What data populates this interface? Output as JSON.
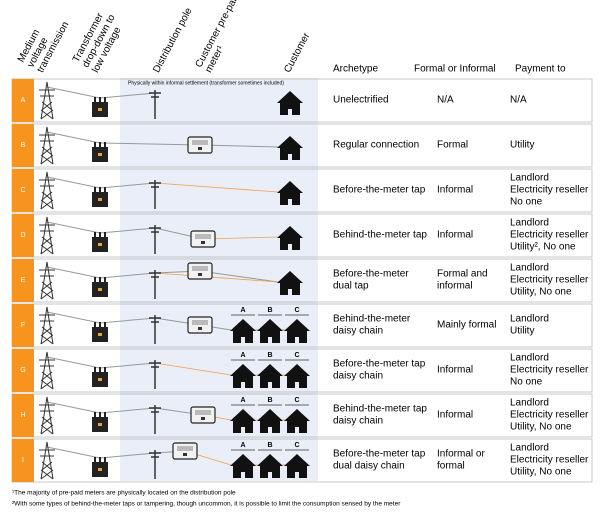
{
  "header": {
    "columns": [
      [
        "Medium",
        "voltage",
        "transmission"
      ],
      [
        "Transformer",
        "drop-down to",
        "low voltage"
      ],
      [
        "Distribution pole"
      ],
      [
        "Customer pre-paid",
        "meter¹"
      ],
      [
        "Customer"
      ]
    ],
    "archetype": "Archetype",
    "formal": "Formal or Informal",
    "payment": "Payment to"
  },
  "note": "Physically within informal settlement (transformer sometimes included)",
  "rows": [
    {
      "label": "A",
      "archetype": [
        "Unelectrified"
      ],
      "formal": [
        "N/A"
      ],
      "payment": [
        "N/A"
      ]
    },
    {
      "label": "B",
      "archetype": [
        "Regular connection"
      ],
      "formal": [
        "Formal"
      ],
      "payment": [
        "Utility"
      ]
    },
    {
      "label": "C",
      "archetype": [
        "Before-the-meter tap"
      ],
      "formal": [
        "Informal"
      ],
      "payment": [
        "Landlord",
        "Electricity reseller",
        "No one"
      ]
    },
    {
      "label": "D",
      "archetype": [
        "Behind-the-meter tap"
      ],
      "formal": [
        "Informal"
      ],
      "payment": [
        "Landlord",
        "Electricity reseller",
        "Utility², No one"
      ]
    },
    {
      "label": "E",
      "archetype": [
        "Before-the-meter",
        "dual tap"
      ],
      "formal": [
        "Formal and",
        "informal"
      ],
      "payment": [
        "Landlord",
        "Electricity reseller",
        "Utility, No one"
      ]
    },
    {
      "label": "F",
      "archetype": [
        "Behind-the-meter",
        "daisy chain"
      ],
      "formal": [
        "Mainly formal"
      ],
      "payment": [
        "Landlord",
        "Utility"
      ],
      "houses": [
        "A",
        "B",
        "C"
      ]
    },
    {
      "label": "G",
      "archetype": [
        "Before-the-meter tap",
        "daisy chain"
      ],
      "formal": [
        "Informal"
      ],
      "payment": [
        "Landlord",
        "Electricity reseller",
        "No one"
      ],
      "houses": [
        "A",
        "B",
        "C"
      ]
    },
    {
      "label": "H",
      "archetype": [
        "Behind-the-meter tap",
        "daisy chain"
      ],
      "formal": [
        "Informal"
      ],
      "payment": [
        "Landlord",
        "Electricity reseller",
        "Utility, No one"
      ],
      "houses": [
        "A",
        "B",
        "C"
      ]
    },
    {
      "label": "I",
      "archetype": [
        "Before-the-meter tap",
        "dual daisy chain"
      ],
      "formal": [
        "Informal or",
        "formal"
      ],
      "payment": [
        "Landlord",
        "Electricity reseller",
        "Utility, No one"
      ],
      "houses": [
        "A",
        "B",
        "C"
      ]
    }
  ],
  "footnotes": [
    "¹The majority of pre-paid meters are physically located on the distribution pole",
    "²With some types of behind-the-meter taps or tampering, though uncommon, it is possible to limit the consumption sensed by the meter"
  ]
}
